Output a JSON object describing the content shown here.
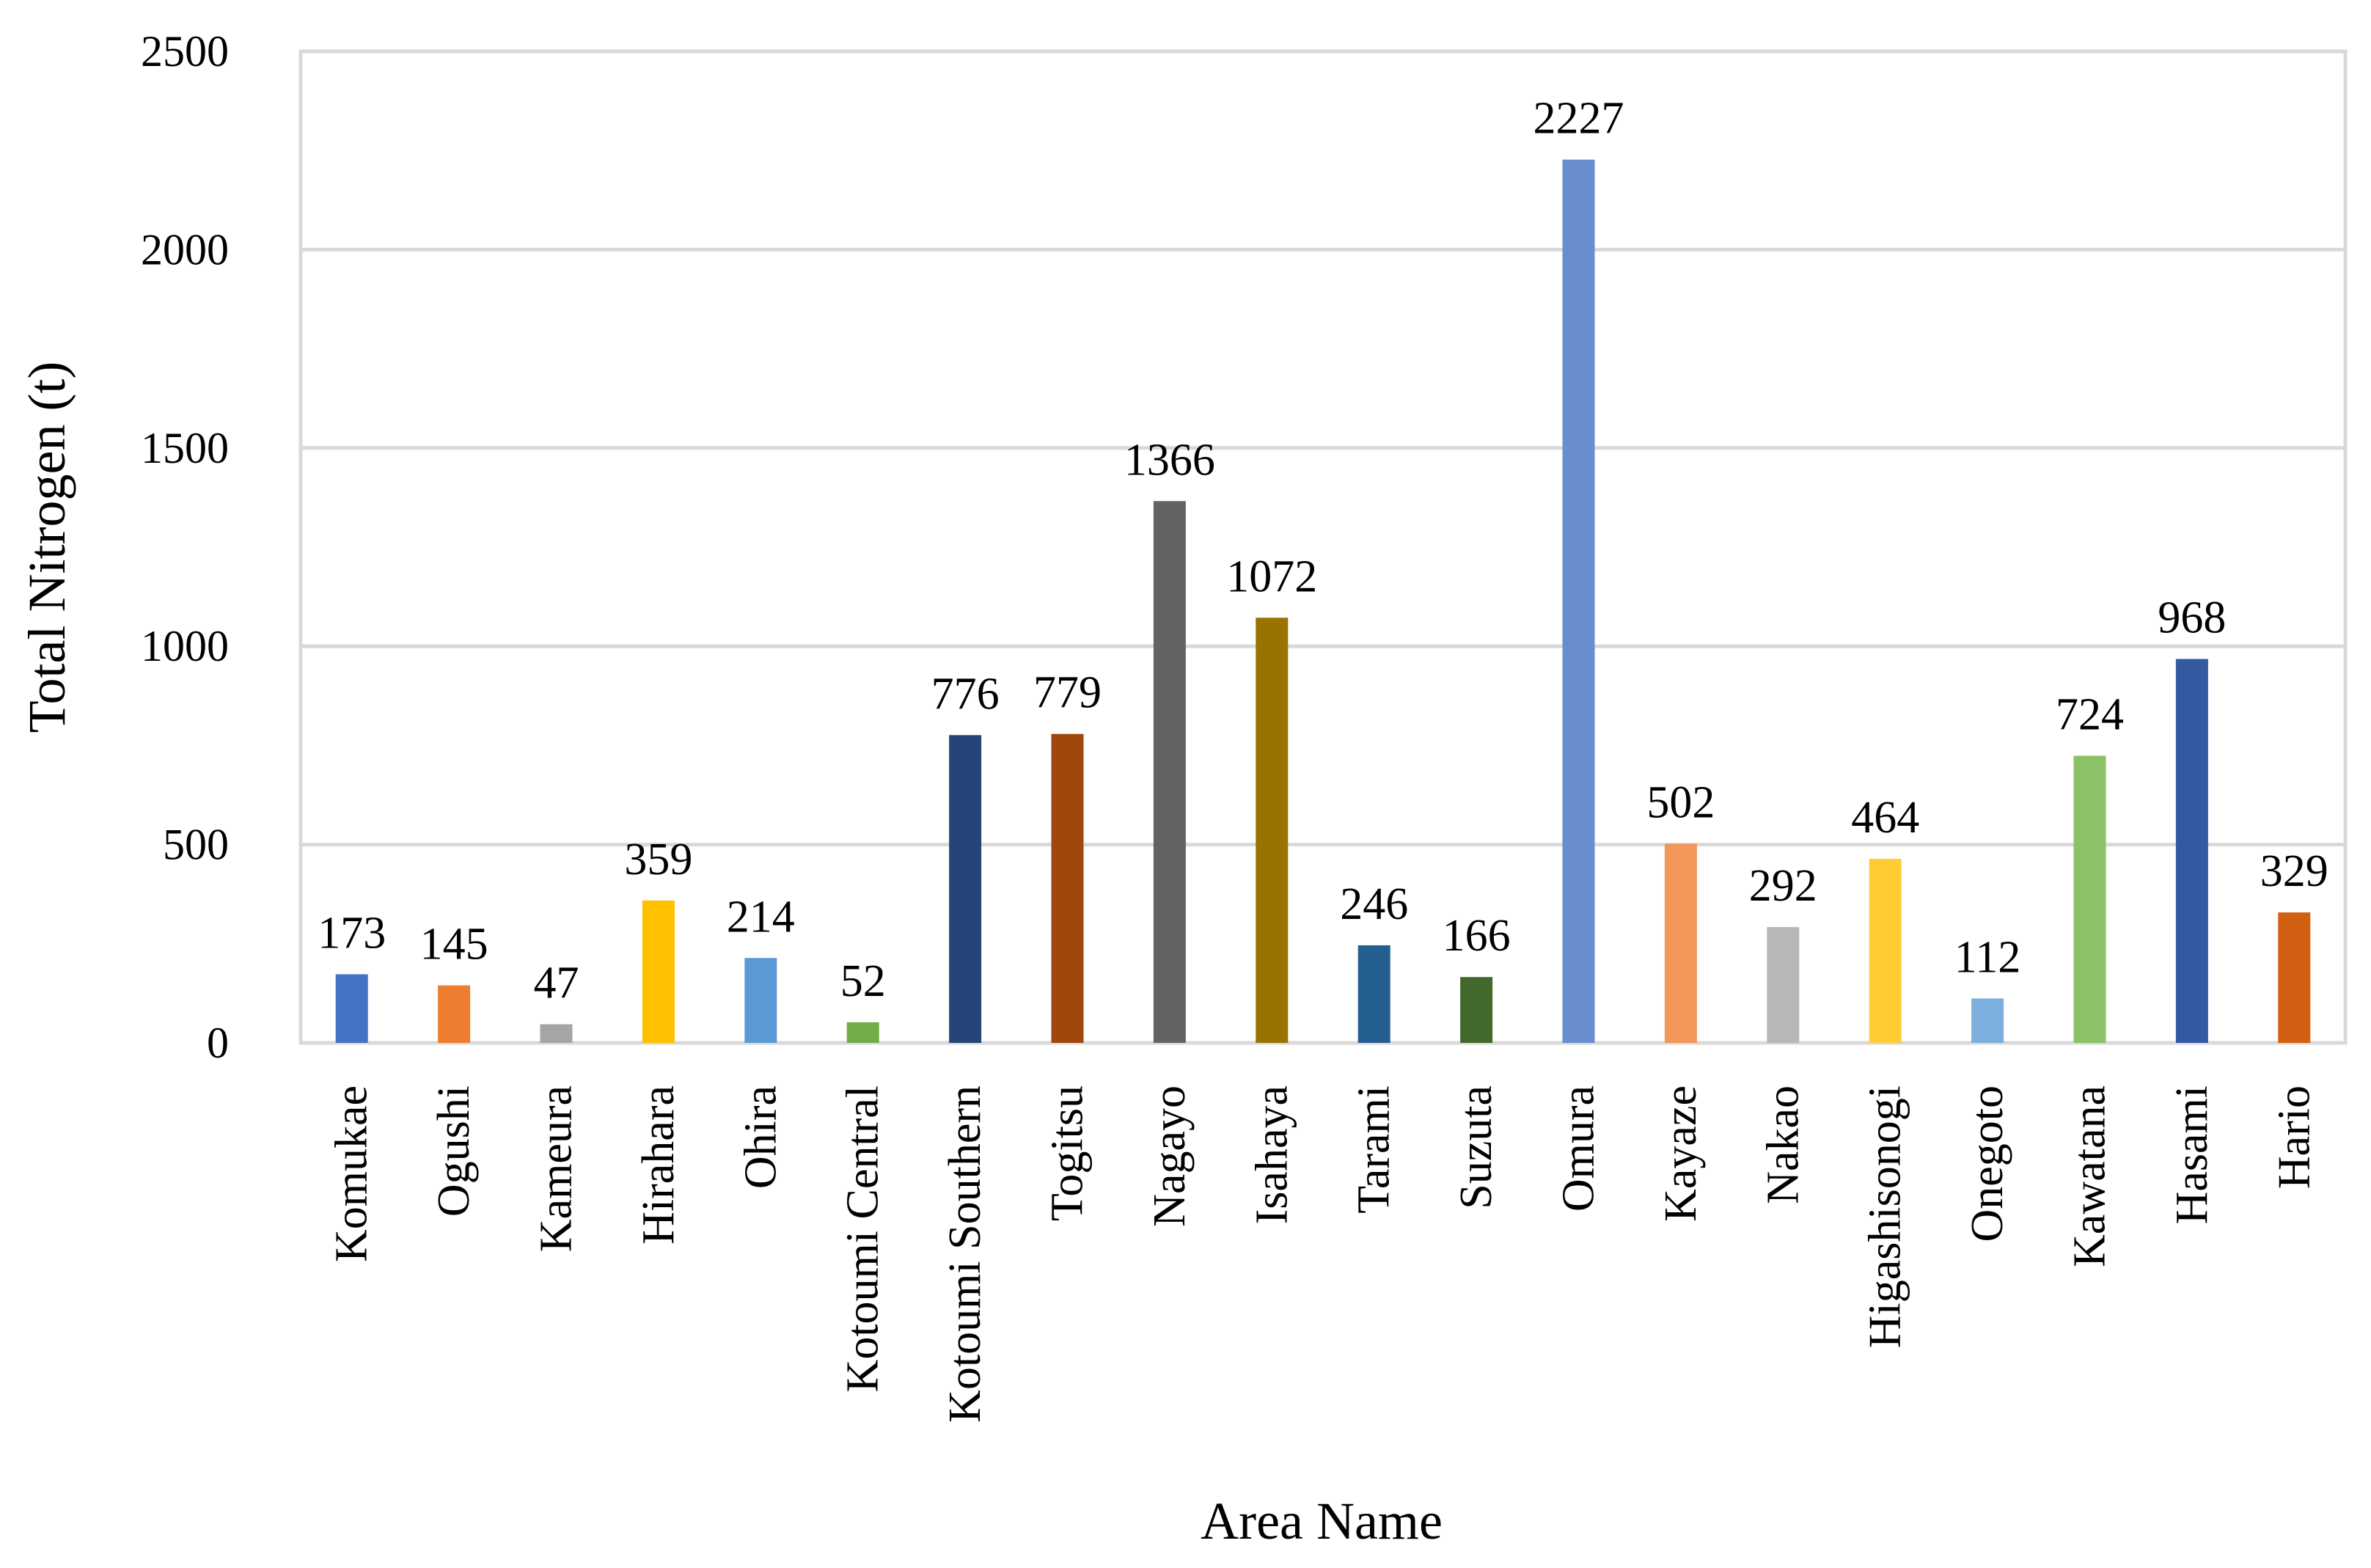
{
  "chart_data": {
    "type": "bar",
    "xlabel": "Area Name",
    "ylabel": "Total Nitrogen (t)",
    "ylim": [
      0,
      2500
    ],
    "yticks": [
      0,
      500,
      1000,
      1500,
      2000,
      2500
    ],
    "grid": true,
    "legend": "none",
    "categories": [
      "Komukae",
      "Ogushi",
      "Kameura",
      "Hirahara",
      "Ohira",
      "Kotoumi Central",
      "Kotoumi Southern",
      "Togitsu",
      "Nagayo",
      "Isahaya",
      "Tarami",
      "Suzuta",
      "Omura",
      "Kayaze",
      "Nakao",
      "Higashisonogi",
      "Onegoto",
      "Kawatana",
      "Hasami",
      "Hario"
    ],
    "values": [
      173,
      145,
      47,
      359,
      214,
      52,
      776,
      779,
      1366,
      1072,
      246,
      166,
      2227,
      502,
      292,
      464,
      112,
      724,
      968,
      329
    ],
    "data_labels": [
      "173",
      "145",
      "47",
      "359",
      "214",
      "52",
      "776",
      "779",
      "1366",
      "1072",
      "246",
      "166",
      "2227",
      "502",
      "292",
      "464",
      "112",
      "724",
      "968",
      "329"
    ],
    "colors": [
      "#4472c4",
      "#ed7d31",
      "#a5a5a5",
      "#ffc000",
      "#5b9bd5",
      "#70ad47",
      "#264478",
      "#9e480e",
      "#636363",
      "#997300",
      "#255e91",
      "#43682b",
      "#698ed0",
      "#f1975a",
      "#b7b7b7",
      "#ffcd33",
      "#7cafdd",
      "#8cc168",
      "#335aa1",
      "#d26012"
    ]
  }
}
